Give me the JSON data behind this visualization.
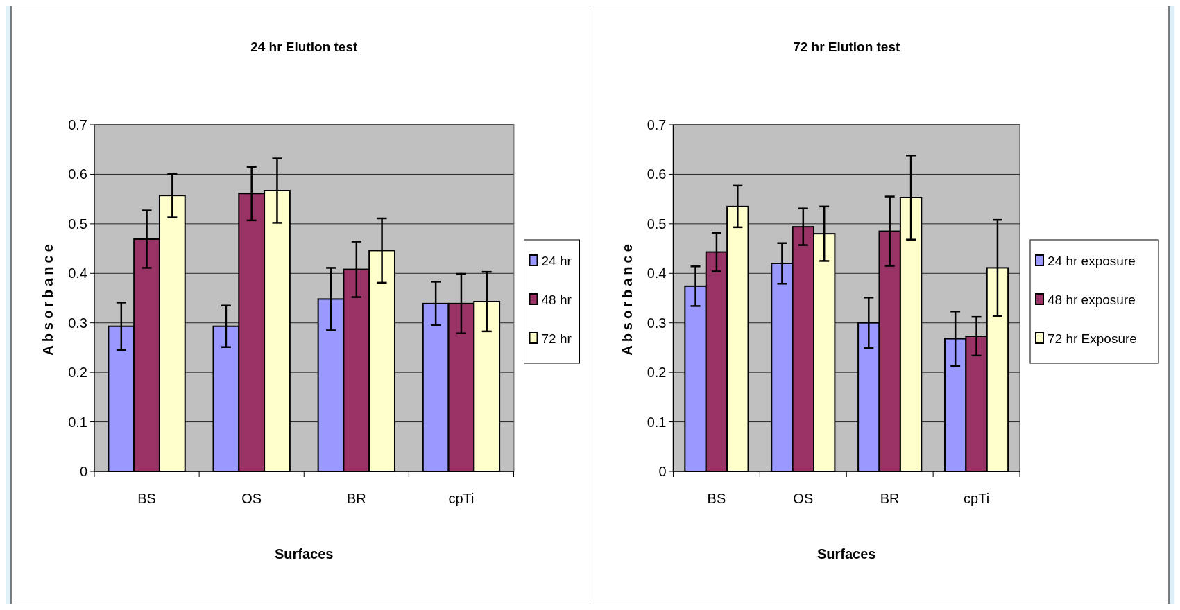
{
  "chart_data": [
    {
      "type": "bar",
      "title": "24 hr Elution test",
      "xlabel": "Surfaces",
      "ylabel": "Absorbance",
      "categories": [
        "BS",
        "OS",
        "BR",
        "cpTi"
      ],
      "ylim": [
        0,
        0.7
      ],
      "yticks": [
        0,
        0.1,
        0.2,
        0.3,
        0.4,
        0.5,
        0.6,
        0.7
      ],
      "grid": "y",
      "legend": "right",
      "series": [
        {
          "name": "24 hr",
          "color": "#9999ff",
          "values": [
            0.293,
            0.293,
            0.348,
            0.339
          ],
          "errors": [
            0.048,
            0.042,
            0.063,
            0.044
          ]
        },
        {
          "name": "48 hr",
          "color": "#993366",
          "values": [
            0.469,
            0.561,
            0.408,
            0.339
          ],
          "errors": [
            0.058,
            0.054,
            0.056,
            0.06
          ]
        },
        {
          "name": "72 hr",
          "color": "#ffffcc",
          "values": [
            0.557,
            0.567,
            0.446,
            0.343
          ],
          "errors": [
            0.044,
            0.065,
            0.065,
            0.06
          ]
        }
      ]
    },
    {
      "type": "bar",
      "title": "72 hr Elution test",
      "xlabel": "Surfaces",
      "ylabel": "Absorbance",
      "categories": [
        "BS",
        "OS",
        "BR",
        "cpTi"
      ],
      "ylim": [
        0,
        0.7
      ],
      "yticks": [
        0,
        0.1,
        0.2,
        0.3,
        0.4,
        0.5,
        0.6,
        0.7
      ],
      "grid": "y",
      "legend": "right",
      "series": [
        {
          "name": "24 hr exposure",
          "color": "#9999ff",
          "values": [
            0.374,
            0.42,
            0.3,
            0.268
          ],
          "errors": [
            0.04,
            0.041,
            0.051,
            0.055
          ]
        },
        {
          "name": "48 hr exposure",
          "color": "#993366",
          "values": [
            0.443,
            0.494,
            0.485,
            0.273
          ],
          "errors": [
            0.039,
            0.037,
            0.07,
            0.039
          ]
        },
        {
          "name": "72 hr Exposure",
          "color": "#ffffcc",
          "values": [
            0.535,
            0.48,
            0.553,
            0.411
          ],
          "errors": [
            0.042,
            0.055,
            0.085,
            0.097
          ]
        }
      ]
    }
  ]
}
